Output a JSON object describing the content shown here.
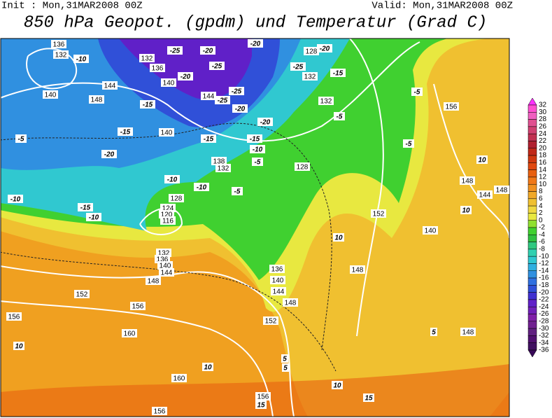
{
  "header": {
    "init": "Init : Mon,31MAR2008 00Z",
    "valid": "Valid: Mon,31MAR2008 00Z",
    "title": "850 hPa Geopot. (gpdm) und Temperatur (Grad C)"
  },
  "colorbar": {
    "ticks": [
      32,
      30,
      28,
      26,
      24,
      22,
      20,
      18,
      16,
      14,
      12,
      10,
      8,
      6,
      4,
      2,
      0,
      -2,
      -4,
      -6,
      -8,
      -10,
      -12,
      -14,
      -16,
      -18,
      -20,
      -22,
      -24,
      -26,
      -28,
      -30,
      -32,
      -34,
      -36
    ],
    "colors": [
      "#ff30ff",
      "#ff50d0",
      "#f060c0",
      "#e05090",
      "#d04070",
      "#c03050",
      "#b02030",
      "#c02818",
      "#d03810",
      "#e04810",
      "#e86010",
      "#f07818",
      "#f09020",
      "#f0a828",
      "#f0c030",
      "#f0d840",
      "#e8e840",
      "#90e030",
      "#40d030",
      "#30c040",
      "#30c880",
      "#30d0b0",
      "#30c8d0",
      "#30b0e0",
      "#3090e0",
      "#3070e0",
      "#3050d8",
      "#4030d0",
      "#6020c8",
      "#7020b8",
      "#8020a8",
      "#702090",
      "#602080",
      "#501070",
      "#401060",
      "#380858"
    ]
  },
  "map": {
    "labels": [
      "136",
      "132",
      "-10",
      "140",
      "144",
      "148",
      "-15",
      "-15",
      "-20",
      "140",
      "-5",
      "-10",
      "-15",
      "-10",
      "124",
      "120",
      "116",
      "128",
      "132",
      "136",
      "140",
      "144",
      "148",
      "152",
      "156",
      "156",
      "160",
      "160",
      "10",
      "10",
      "156",
      "132",
      "136",
      "140",
      "-25",
      "-20",
      "-20",
      "-25",
      "-20",
      "-25",
      "-20",
      "144",
      "-25",
      "-20",
      "-15",
      "-15",
      "-10",
      "138",
      "132",
      "128",
      "-5",
      "-5",
      "-10",
      "-10",
      "128",
      "-20",
      "-25",
      "132",
      "-15",
      "132",
      "-5",
      "-5",
      "156",
      "-5",
      "148",
      "144",
      "148",
      "10",
      "10",
      "140",
      "152",
      "148",
      "136",
      "140",
      "144",
      "148",
      "152",
      "10",
      "10",
      "15",
      "15",
      "156",
      "5",
      "5",
      "5",
      "148"
    ]
  }
}
